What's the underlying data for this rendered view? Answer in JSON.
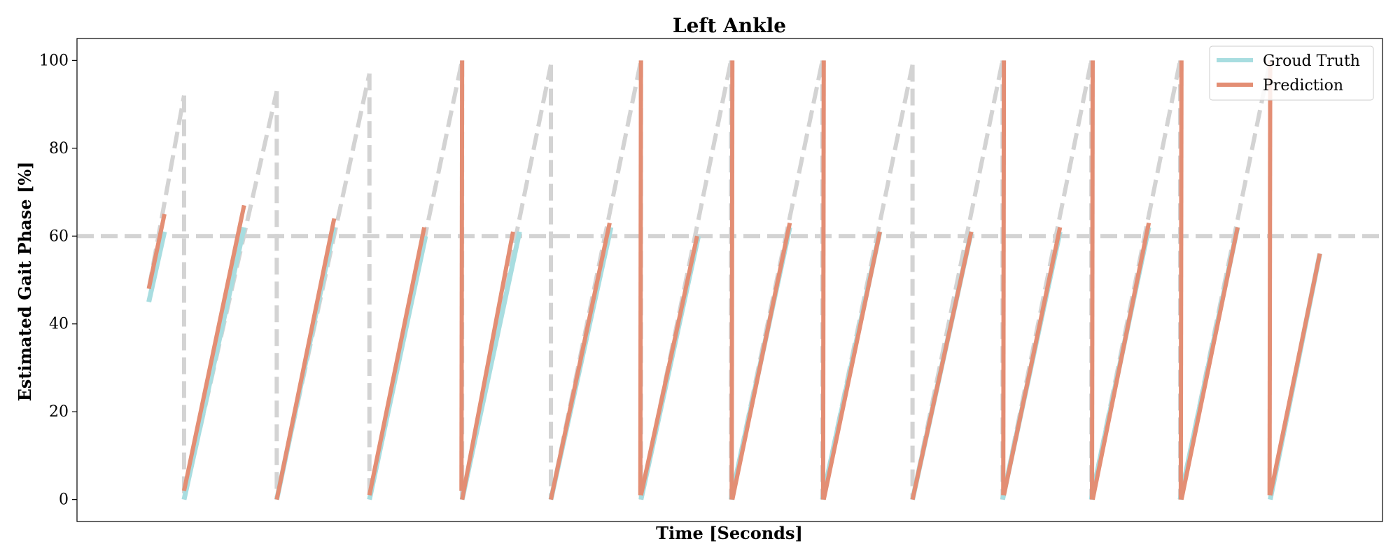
{
  "chart_data": {
    "type": "line",
    "title": "Left Ankle",
    "xlabel": "Time [Seconds]",
    "ylabel": "Estimated Gait Phase [%]",
    "ylim": [
      -5,
      105
    ],
    "xlim": [
      0,
      1000
    ],
    "yticks": [
      0,
      20,
      40,
      60,
      80,
      100
    ],
    "grid": false,
    "legend_position": "top-right",
    "threshold_line": {
      "y": 60,
      "style": "dashed",
      "color": "#d3d3d3"
    },
    "colors": {
      "ground_truth": "#a8dde0",
      "prediction": "#e38e74",
      "reference": "#d3d3d3"
    },
    "legend": [
      {
        "label": "Groud Truth",
        "color": "#a8dde0"
      },
      {
        "label": "Prediction",
        "color": "#e38e74"
      }
    ],
    "reference_segments": [
      {
        "x": [
          55,
          82
        ],
        "y": [
          48,
          92
        ]
      },
      {
        "x": [
          82,
          153
        ],
        "y": [
          0,
          93
        ]
      },
      {
        "x": [
          153,
          224
        ],
        "y": [
          0,
          97
        ]
      },
      {
        "x": [
          224,
          295
        ],
        "y": [
          0,
          100
        ]
      },
      {
        "x": [
          295,
          363
        ],
        "y": [
          0,
          99
        ]
      },
      {
        "x": [
          363,
          432
        ],
        "y": [
          0,
          100
        ]
      },
      {
        "x": [
          432,
          501
        ],
        "y": [
          0,
          100
        ]
      },
      {
        "x": [
          501,
          571
        ],
        "y": [
          0,
          100
        ]
      },
      {
        "x": [
          571,
          640
        ],
        "y": [
          0,
          99
        ]
      },
      {
        "x": [
          640,
          709
        ],
        "y": [
          0,
          100
        ]
      },
      {
        "x": [
          709,
          777
        ],
        "y": [
          0,
          100
        ]
      },
      {
        "x": [
          777,
          845
        ],
        "y": [
          0,
          100
        ]
      },
      {
        "x": [
          845,
          914
        ],
        "y": [
          0,
          100
        ]
      }
    ],
    "reference_drops": [
      82,
      153,
      224,
      363,
      640
    ],
    "series": [
      {
        "name": "Groud Truth",
        "segments": [
          {
            "x": [
              55,
              67
            ],
            "y": [
              45,
              61
            ]
          },
          {
            "x": [
              82,
              128
            ],
            "y": [
              0,
              62
            ]
          },
          {
            "x": [
              153,
              197
            ],
            "y": [
              0,
              62
            ]
          },
          {
            "x": [
              224,
              267
            ],
            "y": [
              0,
              60
            ]
          },
          {
            "x": [
              295,
              339
            ],
            "y": [
              0,
              61
            ]
          },
          {
            "x": [
              363,
              409
            ],
            "y": [
              0,
              62
            ]
          },
          {
            "x": [
              432,
              476
            ],
            "y": [
              0,
              60
            ]
          },
          {
            "x": [
              501,
              546
            ],
            "y": [
              0,
              62
            ]
          },
          {
            "x": [
              571,
              615
            ],
            "y": [
              0,
              61
            ]
          },
          {
            "x": [
              640,
              685
            ],
            "y": [
              0,
              61
            ]
          },
          {
            "x": [
              709,
              753
            ],
            "y": [
              0,
              61
            ]
          },
          {
            "x": [
              777,
              821
            ],
            "y": [
              0,
              62
            ]
          },
          {
            "x": [
              845,
              889
            ],
            "y": [
              0,
              62
            ]
          },
          {
            "x": [
              914,
              952
            ],
            "y": [
              0,
              56
            ]
          }
        ]
      },
      {
        "name": "Prediction",
        "segments": [
          {
            "x": [
              55,
              67
            ],
            "y": [
              48,
              65
            ]
          },
          {
            "x": [
              82,
              128
            ],
            "y": [
              2,
              67
            ]
          },
          {
            "x": [
              153,
              197
            ],
            "y": [
              0,
              64
            ]
          },
          {
            "x": [
              224,
              266
            ],
            "y": [
              1,
              62
            ]
          },
          {
            "x": [
              295,
              294.5
            ],
            "y": [
              100,
              2
            ]
          },
          {
            "x": [
              295,
              334
            ],
            "y": [
              0,
              61
            ]
          },
          {
            "x": [
              363,
              408
            ],
            "y": [
              0,
              63
            ]
          },
          {
            "x": [
              432,
              431.5
            ],
            "y": [
              100,
              1
            ]
          },
          {
            "x": [
              432,
              475
            ],
            "y": [
              1,
              60
            ]
          },
          {
            "x": [
              502,
              501.5
            ],
            "y": [
              100,
              0
            ]
          },
          {
            "x": [
              502,
              546
            ],
            "y": [
              0,
              63
            ]
          },
          {
            "x": [
              572,
              571.5
            ],
            "y": [
              100,
              0
            ]
          },
          {
            "x": [
              572,
              615
            ],
            "y": [
              0,
              61
            ]
          },
          {
            "x": [
              640,
              685
            ],
            "y": [
              0,
              61
            ]
          },
          {
            "x": [
              710,
              709.5
            ],
            "y": [
              100,
              1
            ]
          },
          {
            "x": [
              710,
              753
            ],
            "y": [
              1,
              62
            ]
          },
          {
            "x": [
              778,
              777.5
            ],
            "y": [
              100,
              0
            ]
          },
          {
            "x": [
              778,
              821
            ],
            "y": [
              0,
              63
            ]
          },
          {
            "x": [
              846,
              845.5
            ],
            "y": [
              100,
              0
            ]
          },
          {
            "x": [
              846,
              889
            ],
            "y": [
              0,
              62
            ]
          },
          {
            "x": [
              914,
              913.5
            ],
            "y": [
              100,
              1
            ]
          },
          {
            "x": [
              914,
              952
            ],
            "y": [
              1,
              56
            ]
          }
        ]
      }
    ]
  }
}
